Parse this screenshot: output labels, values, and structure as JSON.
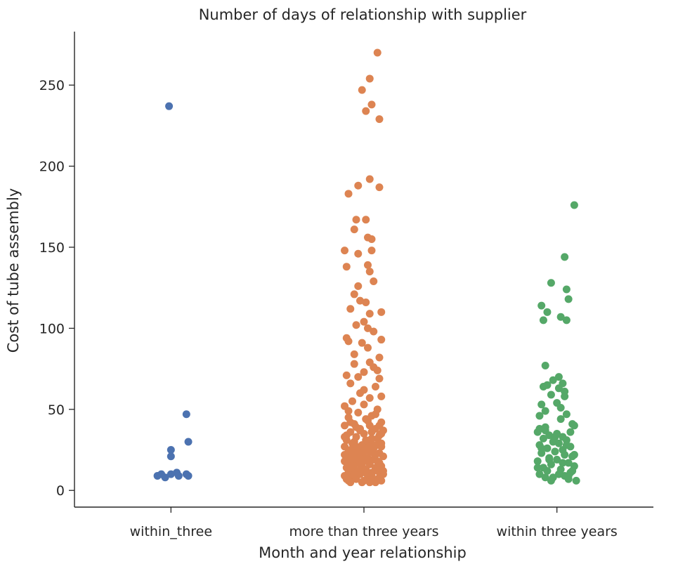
{
  "chart_data": {
    "type": "scatter",
    "title": "Number of days of relationship with supplier",
    "xlabel": "Month and year relationship",
    "ylabel": "Cost of tube assembly",
    "categories": [
      "within_three",
      "more than three years",
      "within three years"
    ],
    "ylim": [
      -10.3,
      283
    ],
    "yticks": [
      0,
      50,
      100,
      150,
      200,
      250
    ],
    "grid": false,
    "legend": "none",
    "series": [
      {
        "category": "within_three",
        "color": "#4c72b0",
        "points": [
          {
            "x": -0.01,
            "y": 237
          },
          {
            "x": 0.08,
            "y": 47
          },
          {
            "x": 0.09,
            "y": 30
          },
          {
            "x": 0.0,
            "y": 25
          },
          {
            "x": 0.0,
            "y": 21
          },
          {
            "x": -0.05,
            "y": 10
          },
          {
            "x": -0.03,
            "y": 8
          },
          {
            "x": 0.0,
            "y": 10
          },
          {
            "x": 0.03,
            "y": 11
          },
          {
            "x": 0.04,
            "y": 9
          },
          {
            "x": 0.08,
            "y": 10
          },
          {
            "x": 0.09,
            "y": 9
          },
          {
            "x": -0.07,
            "y": 9
          }
        ]
      },
      {
        "category": "more than three years",
        "color": "#dd8452",
        "points": [
          {
            "x": 0.07,
            "y": 270
          },
          {
            "x": 0.03,
            "y": 254
          },
          {
            "x": -0.01,
            "y": 247
          },
          {
            "x": 0.04,
            "y": 238
          },
          {
            "x": 0.01,
            "y": 234
          },
          {
            "x": 0.08,
            "y": 229
          },
          {
            "x": 0.03,
            "y": 192
          },
          {
            "x": -0.03,
            "y": 188
          },
          {
            "x": 0.08,
            "y": 187
          },
          {
            "x": -0.08,
            "y": 183
          },
          {
            "x": -0.04,
            "y": 167
          },
          {
            "x": 0.01,
            "y": 167
          },
          {
            "x": -0.05,
            "y": 161
          },
          {
            "x": 0.02,
            "y": 156
          },
          {
            "x": 0.04,
            "y": 155
          },
          {
            "x": -0.1,
            "y": 148
          },
          {
            "x": 0.04,
            "y": 148
          },
          {
            "x": -0.03,
            "y": 146
          },
          {
            "x": 0.02,
            "y": 139
          },
          {
            "x": -0.09,
            "y": 138
          },
          {
            "x": 0.03,
            "y": 135
          },
          {
            "x": 0.05,
            "y": 129
          },
          {
            "x": -0.05,
            "y": 121
          },
          {
            "x": -0.02,
            "y": 117
          },
          {
            "x": 0.01,
            "y": 116
          },
          {
            "x": -0.07,
            "y": 112
          },
          {
            "x": 0.09,
            "y": 110
          },
          {
            "x": 0.03,
            "y": 109
          },
          {
            "x": 0.0,
            "y": 104
          },
          {
            "x": -0.04,
            "y": 102
          },
          {
            "x": 0.05,
            "y": 98
          },
          {
            "x": -0.09,
            "y": 94
          },
          {
            "x": -0.08,
            "y": 92
          },
          {
            "x": 0.09,
            "y": 93
          },
          {
            "x": -0.01,
            "y": 91
          },
          {
            "x": 0.02,
            "y": 88
          },
          {
            "x": -0.05,
            "y": 84
          },
          {
            "x": 0.08,
            "y": 82
          },
          {
            "x": 0.03,
            "y": 79
          },
          {
            "x": 0.05,
            "y": 76
          },
          {
            "x": 0.0,
            "y": 73
          },
          {
            "x": -0.09,
            "y": 71
          },
          {
            "x": -0.03,
            "y": 70
          },
          {
            "x": 0.08,
            "y": 69
          },
          {
            "x": -0.07,
            "y": 66
          },
          {
            "x": 0.06,
            "y": 64
          },
          {
            "x": -0.02,
            "y": 60
          },
          {
            "x": 0.09,
            "y": 58
          },
          {
            "x": 0.03,
            "y": 57
          },
          {
            "x": -0.06,
            "y": 55
          },
          {
            "x": 0.0,
            "y": 53
          },
          {
            "x": -0.1,
            "y": 52
          },
          {
            "x": 0.07,
            "y": 50
          },
          {
            "x": -0.03,
            "y": 48
          },
          {
            "x": 0.04,
            "y": 46
          },
          {
            "x": -0.08,
            "y": 45
          },
          {
            "x": 0.01,
            "y": 44
          },
          {
            "x": 0.09,
            "y": 42
          },
          {
            "x": -0.05,
            "y": 41
          },
          {
            "x": -0.1,
            "y": 40
          },
          {
            "x": 0.03,
            "y": 40
          },
          {
            "x": 0.06,
            "y": 38
          },
          {
            "x": -0.02,
            "y": 37
          },
          {
            "x": 0.1,
            "y": 37
          },
          {
            "x": -0.07,
            "y": 36
          },
          {
            "x": 0.0,
            "y": 35
          },
          {
            "x": 0.08,
            "y": 34
          },
          {
            "x": -0.04,
            "y": 33
          },
          {
            "x": 0.04,
            "y": 32
          },
          {
            "x": -0.09,
            "y": 31
          },
          {
            "x": 0.02,
            "y": 30
          },
          {
            "x": -0.06,
            "y": 29
          },
          {
            "x": 0.07,
            "y": 28
          },
          {
            "x": -0.01,
            "y": 28
          },
          {
            "x": 0.09,
            "y": 27
          },
          {
            "x": -0.1,
            "y": 27
          },
          {
            "x": 0.05,
            "y": 26
          },
          {
            "x": -0.03,
            "y": 25
          },
          {
            "x": 0.01,
            "y": 25
          },
          {
            "x": -0.08,
            "y": 24
          },
          {
            "x": 0.03,
            "y": 24
          },
          {
            "x": 0.08,
            "y": 23
          },
          {
            "x": -0.05,
            "y": 23
          },
          {
            "x": 0.06,
            "y": 22
          },
          {
            "x": -0.02,
            "y": 21
          },
          {
            "x": 0.1,
            "y": 21
          },
          {
            "x": -0.09,
            "y": 20
          },
          {
            "x": 0.02,
            "y": 20
          },
          {
            "x": -0.06,
            "y": 19
          },
          {
            "x": 0.05,
            "y": 19
          },
          {
            "x": 0.0,
            "y": 18
          },
          {
            "x": -0.1,
            "y": 18
          },
          {
            "x": 0.08,
            "y": 17
          },
          {
            "x": -0.04,
            "y": 17
          },
          {
            "x": 0.03,
            "y": 16
          },
          {
            "x": -0.07,
            "y": 16
          },
          {
            "x": 0.09,
            "y": 15
          },
          {
            "x": -0.01,
            "y": 15
          },
          {
            "x": 0.06,
            "y": 14
          },
          {
            "x": -0.09,
            "y": 14
          },
          {
            "x": 0.01,
            "y": 13
          },
          {
            "x": -0.05,
            "y": 13
          },
          {
            "x": 0.07,
            "y": 12
          },
          {
            "x": -0.03,
            "y": 12
          },
          {
            "x": 0.04,
            "y": 11
          },
          {
            "x": -0.08,
            "y": 11
          },
          {
            "x": 0.1,
            "y": 10
          },
          {
            "x": -0.02,
            "y": 10
          },
          {
            "x": 0.02,
            "y": 9
          },
          {
            "x": -0.1,
            "y": 9
          },
          {
            "x": 0.08,
            "y": 8
          },
          {
            "x": -0.06,
            "y": 8
          },
          {
            "x": 0.05,
            "y": 7
          },
          {
            "x": -0.04,
            "y": 7
          },
          {
            "x": 0.0,
            "y": 6
          },
          {
            "x": -0.08,
            "y": 6
          },
          {
            "x": 0.09,
            "y": 6
          },
          {
            "x": 0.03,
            "y": 5
          },
          {
            "x": -0.07,
            "y": 5
          },
          {
            "x": 0.06,
            "y": 5
          },
          {
            "x": -0.01,
            "y": 5
          },
          {
            "x": 0.01,
            "y": 31
          },
          {
            "x": -0.05,
            "y": 30
          },
          {
            "x": 0.07,
            "y": 32
          },
          {
            "x": -0.09,
            "y": 34
          },
          {
            "x": 0.04,
            "y": 36
          },
          {
            "x": -0.02,
            "y": 38
          },
          {
            "x": 0.08,
            "y": 40
          },
          {
            "x": -0.07,
            "y": 42
          },
          {
            "x": 0.02,
            "y": 26
          },
          {
            "x": -0.04,
            "y": 27
          },
          {
            "x": 0.09,
            "y": 29
          },
          {
            "x": -0.1,
            "y": 22
          },
          {
            "x": 0.05,
            "y": 23
          },
          {
            "x": 0.0,
            "y": 24
          },
          {
            "x": -0.06,
            "y": 21
          },
          {
            "x": 0.07,
            "y": 18
          },
          {
            "x": -0.03,
            "y": 19
          },
          {
            "x": 0.03,
            "y": 17
          },
          {
            "x": -0.08,
            "y": 15
          },
          {
            "x": 0.06,
            "y": 13
          },
          {
            "x": -0.01,
            "y": 11
          },
          {
            "x": 0.1,
            "y": 12
          },
          {
            "x": -0.09,
            "y": 7
          },
          {
            "x": 0.04,
            "y": 9
          },
          {
            "x": -0.05,
            "y": 10
          },
          {
            "x": 0.08,
            "y": 14
          },
          {
            "x": -0.02,
            "y": 16
          },
          {
            "x": 0.01,
            "y": 20
          },
          {
            "x": -0.07,
            "y": 25
          },
          {
            "x": 0.05,
            "y": 28
          },
          {
            "x": -0.1,
            "y": 33
          },
          {
            "x": 0.09,
            "y": 35
          },
          {
            "x": -0.04,
            "y": 39
          },
          {
            "x": 0.02,
            "y": 43
          },
          {
            "x": 0.06,
            "y": 47
          },
          {
            "x": -0.08,
            "y": 49
          },
          {
            "x": 0.0,
            "y": 62
          },
          {
            "x": 0.07,
            "y": 74
          },
          {
            "x": -0.05,
            "y": 78
          },
          {
            "x": 0.02,
            "y": 100
          },
          {
            "x": -0.03,
            "y": 126
          }
        ]
      },
      {
        "category": "within three years",
        "color": "#55a868",
        "points": [
          {
            "x": 0.09,
            "y": 176
          },
          {
            "x": 0.04,
            "y": 144
          },
          {
            "x": -0.03,
            "y": 128
          },
          {
            "x": 0.05,
            "y": 124
          },
          {
            "x": 0.06,
            "y": 118
          },
          {
            "x": -0.08,
            "y": 114
          },
          {
            "x": -0.05,
            "y": 110
          },
          {
            "x": 0.02,
            "y": 107
          },
          {
            "x": -0.07,
            "y": 105
          },
          {
            "x": 0.05,
            "y": 105
          },
          {
            "x": -0.06,
            "y": 77
          },
          {
            "x": 0.01,
            "y": 70
          },
          {
            "x": -0.02,
            "y": 68
          },
          {
            "x": 0.03,
            "y": 66
          },
          {
            "x": -0.05,
            "y": 65
          },
          {
            "x": -0.07,
            "y": 64
          },
          {
            "x": 0.01,
            "y": 63
          },
          {
            "x": 0.04,
            "y": 61
          },
          {
            "x": -0.03,
            "y": 59
          },
          {
            "x": 0.0,
            "y": 54
          },
          {
            "x": -0.08,
            "y": 53
          },
          {
            "x": 0.02,
            "y": 51
          },
          {
            "x": -0.06,
            "y": 49
          },
          {
            "x": 0.05,
            "y": 47
          },
          {
            "x": 0.08,
            "y": 41
          },
          {
            "x": 0.09,
            "y": 40
          },
          {
            "x": -0.09,
            "y": 38
          },
          {
            "x": -0.06,
            "y": 37
          },
          {
            "x": -0.1,
            "y": 36
          },
          {
            "x": 0.0,
            "y": 35
          },
          {
            "x": -0.04,
            "y": 34
          },
          {
            "x": 0.03,
            "y": 33
          },
          {
            "x": -0.07,
            "y": 32
          },
          {
            "x": 0.05,
            "y": 31
          },
          {
            "x": -0.02,
            "y": 30
          },
          {
            "x": 0.01,
            "y": 29
          },
          {
            "x": -0.09,
            "y": 28
          },
          {
            "x": 0.07,
            "y": 27
          },
          {
            "x": -0.05,
            "y": 26
          },
          {
            "x": 0.03,
            "y": 25
          },
          {
            "x": -0.01,
            "y": 24
          },
          {
            "x": -0.08,
            "y": 23
          },
          {
            "x": 0.04,
            "y": 22
          },
          {
            "x": 0.08,
            "y": 21
          },
          {
            "x": -0.04,
            "y": 20
          },
          {
            "x": 0.0,
            "y": 19
          },
          {
            "x": -0.1,
            "y": 18
          },
          {
            "x": 0.06,
            "y": 17
          },
          {
            "x": -0.03,
            "y": 16
          },
          {
            "x": 0.09,
            "y": 15
          },
          {
            "x": -0.07,
            "y": 14
          },
          {
            "x": 0.02,
            "y": 13
          },
          {
            "x": -0.05,
            "y": 12
          },
          {
            "x": 0.07,
            "y": 11
          },
          {
            "x": -0.09,
            "y": 10
          },
          {
            "x": 0.04,
            "y": 9
          },
          {
            "x": -0.02,
            "y": 8
          },
          {
            "x": 0.06,
            "y": 7
          },
          {
            "x": 0.1,
            "y": 6
          },
          {
            "x": -0.06,
            "y": 8
          },
          {
            "x": 0.01,
            "y": 10
          },
          {
            "x": 0.08,
            "y": 12
          },
          {
            "x": -0.1,
            "y": 14
          },
          {
            "x": 0.03,
            "y": 17
          },
          {
            "x": -0.04,
            "y": 19
          },
          {
            "x": 0.09,
            "y": 22
          },
          {
            "x": -0.08,
            "y": 26
          },
          {
            "x": 0.05,
            "y": 28
          },
          {
            "x": -0.01,
            "y": 33
          },
          {
            "x": 0.07,
            "y": 36
          },
          {
            "x": -0.06,
            "y": 39
          },
          {
            "x": 0.02,
            "y": 44
          },
          {
            "x": -0.09,
            "y": 46
          },
          {
            "x": 0.04,
            "y": 58
          },
          {
            "x": -0.03,
            "y": 6
          },
          {
            "x": 0.06,
            "y": 9
          }
        ]
      }
    ]
  }
}
